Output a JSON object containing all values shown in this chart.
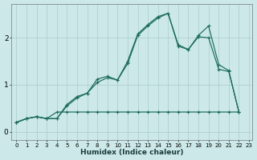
{
  "xlabel": "Humidex (Indice chaleur)",
  "bg_color": "#cce8e8",
  "grid_color": "#aacccc",
  "line_color": "#1a6b5a",
  "xlim_min": -0.5,
  "xlim_max": 23.3,
  "ylim_min": -0.18,
  "ylim_max": 2.72,
  "yticks": [
    0,
    1,
    2
  ],
  "xticks": [
    0,
    1,
    2,
    3,
    4,
    5,
    6,
    7,
    8,
    9,
    10,
    11,
    12,
    13,
    14,
    15,
    16,
    17,
    18,
    19,
    20,
    21,
    22,
    23
  ],
  "line1_x": [
    0,
    1,
    2,
    3,
    4,
    5,
    6,
    7,
    8,
    9,
    10,
    11,
    12,
    13,
    14,
    15,
    16,
    17,
    18,
    19,
    20,
    21,
    22
  ],
  "line1_y": [
    0.2,
    0.28,
    0.32,
    0.28,
    0.28,
    0.55,
    0.72,
    0.82,
    1.05,
    1.15,
    1.1,
    1.45,
    2.05,
    2.25,
    2.42,
    2.52,
    1.82,
    1.75,
    2.02,
    2.0,
    1.33,
    1.28,
    0.42
  ],
  "line2_x": [
    0,
    1,
    2,
    3,
    4,
    5,
    6,
    7,
    8,
    9,
    10,
    11,
    12,
    13,
    14,
    15,
    16,
    17,
    18,
    19,
    20,
    21,
    22
  ],
  "line2_y": [
    0.2,
    0.28,
    0.32,
    0.28,
    0.28,
    0.58,
    0.75,
    0.82,
    1.12,
    1.18,
    1.1,
    1.5,
    2.08,
    2.28,
    2.45,
    2.52,
    1.85,
    1.75,
    2.05,
    2.25,
    1.43,
    1.3,
    0.42
  ],
  "line3_x": [
    0,
    1,
    2,
    3,
    4,
    5,
    6,
    7,
    8,
    9,
    10,
    11,
    12,
    13,
    14,
    15,
    16,
    17,
    18,
    19,
    20,
    21,
    22
  ],
  "line3_y": [
    0.2,
    0.28,
    0.32,
    0.28,
    0.42,
    0.42,
    0.42,
    0.42,
    0.42,
    0.42,
    0.42,
    0.42,
    0.42,
    0.42,
    0.42,
    0.42,
    0.42,
    0.42,
    0.42,
    0.42,
    0.42,
    0.42,
    0.42
  ]
}
